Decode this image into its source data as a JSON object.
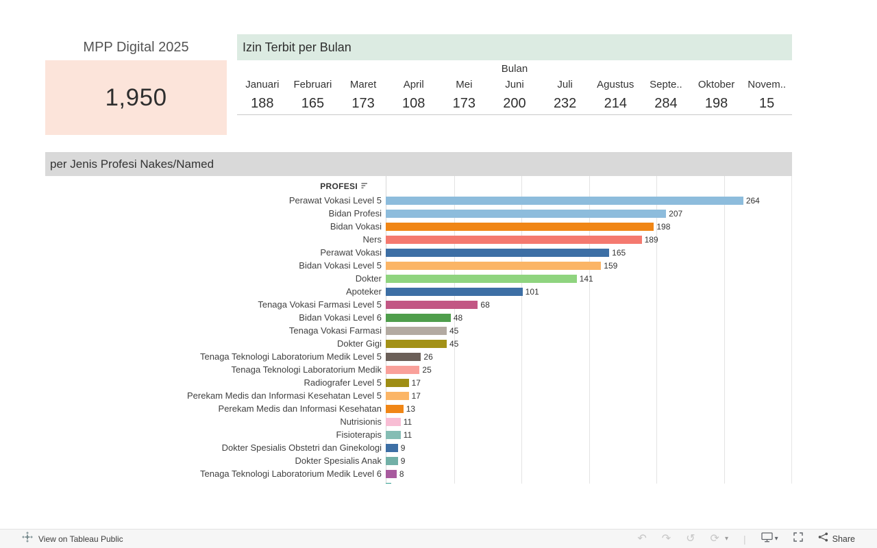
{
  "kpi": {
    "title": "MPP Digital 2025",
    "value": "1,950"
  },
  "monthly": {
    "header": "Izin Terbit per Bulan",
    "field_label": "Bulan",
    "months": [
      "Januari",
      "Februari",
      "Maret",
      "April",
      "Mei",
      "Juni",
      "Juli",
      "Agustus",
      "Septe..",
      "Oktober",
      "Novem.."
    ],
    "values": [
      "188",
      "165",
      "173",
      "108",
      "173",
      "200",
      "232",
      "214",
      "284",
      "198",
      "15"
    ]
  },
  "profesi": {
    "header": "per Jenis Profesi Nakes/Named",
    "column_label": "PROFESI"
  },
  "chart_data": {
    "type": "bar",
    "orientation": "horizontal",
    "title": "per Jenis Profesi Nakes/Named",
    "xlabel": "",
    "ylabel": "PROFESI",
    "xlim": [
      0,
      300
    ],
    "gridline_interval": 50,
    "categories": [
      "Perawat Vokasi Level 5",
      "Bidan Profesi",
      "Bidan Vokasi",
      "Ners",
      "Perawat Vokasi",
      "Bidan Vokasi Level 5",
      "Dokter",
      "Apoteker",
      "Tenaga Vokasi Farmasi Level 5",
      "Bidan Vokasi Level 6",
      "Tenaga Vokasi Farmasi",
      "Dokter Gigi",
      "Tenaga Teknologi Laboratorium Medik Level 5",
      "Tenaga Teknologi Laboratorium Medik",
      "Radiografer Level 5",
      "Perekam Medis dan Informasi Kesehatan Level 5",
      "Perekam Medis dan Informasi Kesehatan",
      "Nutrisionis",
      "Fisioterapis",
      "Dokter Spesialis Obstetri dan Ginekologi",
      "Dokter Spesialis Anak",
      "Tenaga Teknologi Laboratorium Medik Level 6"
    ],
    "values": [
      264,
      207,
      198,
      189,
      165,
      159,
      141,
      101,
      68,
      48,
      45,
      45,
      26,
      25,
      17,
      17,
      13,
      11,
      11,
      9,
      9,
      8
    ],
    "colors": [
      "#8dbcdc",
      "#8dbcdc",
      "#f08616",
      "#f4796f",
      "#3d6fa5",
      "#fbb566",
      "#8fd47f",
      "#3d6fa5",
      "#c25784",
      "#4f9e4c",
      "#b3aaa1",
      "#a39117",
      "#6b5f58",
      "#f9a09a",
      "#9e8d14",
      "#fbb566",
      "#f08616",
      "#f8bdd4",
      "#85bdb4",
      "#3d6fa5",
      "#72b0a7",
      "#a85a9e"
    ],
    "clipped_row": {
      "value": 4,
      "color": "#2e9c8e"
    }
  },
  "toolbar": {
    "view_label": "View on Tableau Public",
    "share_label": "Share",
    "undo_glyph": "↶",
    "redo_glyph": "↷",
    "replay_glyph": "↺",
    "refresh_glyph": "⟳",
    "caret_glyph": "▾",
    "separator_glyph": "|"
  },
  "colors": {
    "kpi_box_bg": "#fce4da",
    "monthly_header_bg": "#dcebe2",
    "section_header_bg": "#d9d9d9",
    "gridline": "#e3e3e3"
  }
}
